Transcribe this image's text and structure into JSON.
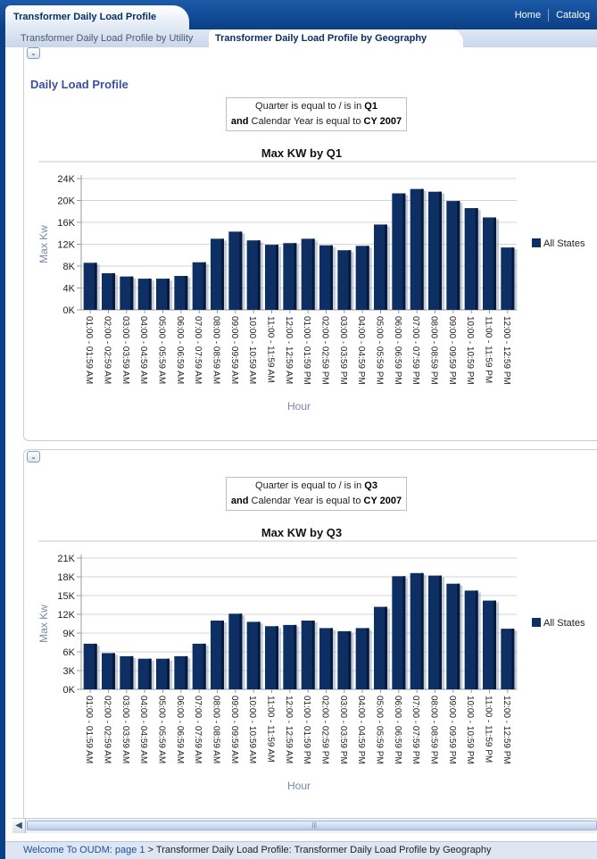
{
  "app": {
    "title": "Transformer Daily Load Profile"
  },
  "nav": {
    "home": "Home",
    "catalog": "Catalog"
  },
  "tabs": [
    {
      "label": "Transformer Daily Load Profile by Utility",
      "active": false
    },
    {
      "label": "Transformer Daily Load Profile by Geography",
      "active": true
    }
  ],
  "section1": {
    "title": "Daily Load Profile",
    "filter": {
      "line1_prefix": "Quarter is equal to / is in ",
      "line1_value": "Q1",
      "line2_and": "and",
      "line2_prefix": " Calendar Year is equal to ",
      "line2_value": "CY 2007"
    }
  },
  "section2": {
    "filter": {
      "line1_prefix": "Quarter is equal to / is in ",
      "line1_value": "Q3",
      "line2_and": "and",
      "line2_prefix": " Calendar Year is equal to ",
      "line2_value": "CY 2007"
    }
  },
  "colors": {
    "bar": "#0e2f63",
    "bar_side": "#061a3d",
    "title_blue": "#3b50a0",
    "axis_label": "#7a87ad"
  },
  "chart_data": [
    {
      "type": "bar",
      "title": "Max KW by Q1",
      "xlabel": "Hour",
      "ylabel": "Max Kw",
      "ylim": [
        0,
        24000
      ],
      "yticks": [
        0,
        4000,
        8000,
        12000,
        16000,
        20000,
        24000
      ],
      "ytick_labels": [
        "0K",
        "4K",
        "8K",
        "12K",
        "16K",
        "20K",
        "24K"
      ],
      "categories": [
        "01:00 - 01:59 AM",
        "02:00 - 02:59 AM",
        "03:00 - 03:59 AM",
        "04:00 - 04:59 AM",
        "05:00 - 05:59 AM",
        "06:00 - 06:59 AM",
        "07:00 - 07:59 AM",
        "08:00 - 08:59 AM",
        "09:00 - 09:59 AM",
        "10:00 - 10:59 AM",
        "11:00 - 11:59 AM",
        "12:00 - 12:59 AM",
        "01:00 - 01:59 PM",
        "02:00 - 02:59 PM",
        "03:00 - 03:59 PM",
        "04:00 - 04:59 PM",
        "05:00 - 05:59 PM",
        "06:00 - 06:59 PM",
        "07:00 - 07:59 PM",
        "08:00 - 08:59 PM",
        "09:00 - 09:59 PM",
        "10:00 - 10:59 PM",
        "11:00 - 11:59 PM",
        "12:00 - 12:59 PM"
      ],
      "series": [
        {
          "name": "All States",
          "values": [
            8600,
            6700,
            6100,
            5700,
            5700,
            6200,
            8700,
            13000,
            14300,
            12700,
            11900,
            12200,
            13000,
            11800,
            10900,
            11700,
            15600,
            21300,
            22100,
            21600,
            19900,
            18600,
            16900,
            11400
          ]
        }
      ],
      "grid": true,
      "legend": "right"
    },
    {
      "type": "bar",
      "title": "Max KW by Q3",
      "xlabel": "Hour",
      "ylabel": "Max Kw",
      "ylim": [
        0,
        21000
      ],
      "yticks": [
        0,
        3000,
        6000,
        9000,
        12000,
        15000,
        18000,
        21000
      ],
      "ytick_labels": [
        "0K",
        "3K",
        "6K",
        "9K",
        "12K",
        "15K",
        "18K",
        "21K"
      ],
      "categories": [
        "01:00 - 01:59 AM",
        "02:00 - 02:59 AM",
        "03:00 - 03:59 AM",
        "04:00 - 04:59 AM",
        "05:00 - 05:59 AM",
        "06:00 - 06:59 AM",
        "07:00 - 07:59 AM",
        "08:00 - 08:59 AM",
        "09:00 - 09:59 AM",
        "10:00 - 10:59 AM",
        "11:00 - 11:59 AM",
        "12:00 - 12:59 AM",
        "01:00 - 01:59 PM",
        "02:00 - 02:59 PM",
        "03:00 - 03:59 PM",
        "04:00 - 04:59 PM",
        "05:00 - 05:59 PM",
        "06:00 - 06:59 PM",
        "07:00 - 07:59 PM",
        "08:00 - 08:59 PM",
        "09:00 - 09:59 PM",
        "10:00 - 10:59 PM",
        "11:00 - 11:59 PM",
        "12:00 - 12:59 PM"
      ],
      "series": [
        {
          "name": "All States",
          "values": [
            7300,
            5800,
            5300,
            4900,
            4900,
            5300,
            7300,
            11000,
            12100,
            10800,
            10100,
            10300,
            11000,
            9800,
            9300,
            9800,
            13200,
            18100,
            18600,
            18200,
            16900,
            15800,
            14200,
            9700
          ]
        }
      ],
      "grid": true,
      "legend": "right"
    }
  ],
  "footer": {
    "breadcrumb_link": "Welcome To OUDM: page 1",
    "separator": ">",
    "breadcrumb_current": "Transformer Daily Load Profile: Transformer Daily Load Profile by Geography"
  }
}
